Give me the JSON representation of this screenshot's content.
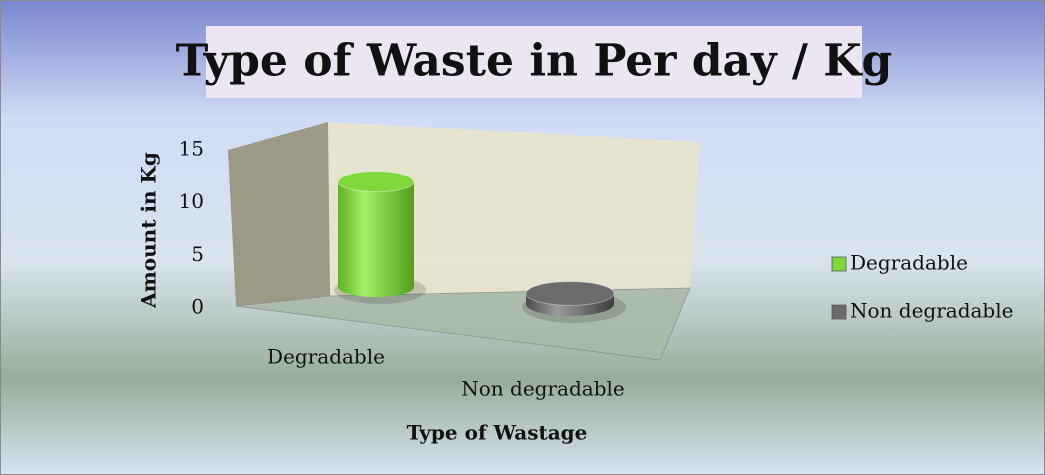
{
  "chart_data": {
    "type": "bar",
    "title": "Type of Waste in Per day / Kg",
    "categories": [
      "Degradable",
      "Non degradable"
    ],
    "values": [
      10,
      1
    ],
    "colors": [
      "#7fd93a",
      "#6b6b6b"
    ],
    "ylim": [
      0,
      15
    ],
    "yticks": [
      0,
      5,
      10,
      15
    ],
    "y_label": "Amount in Kg",
    "x_label": "Type of Wastage",
    "legend": "right"
  }
}
